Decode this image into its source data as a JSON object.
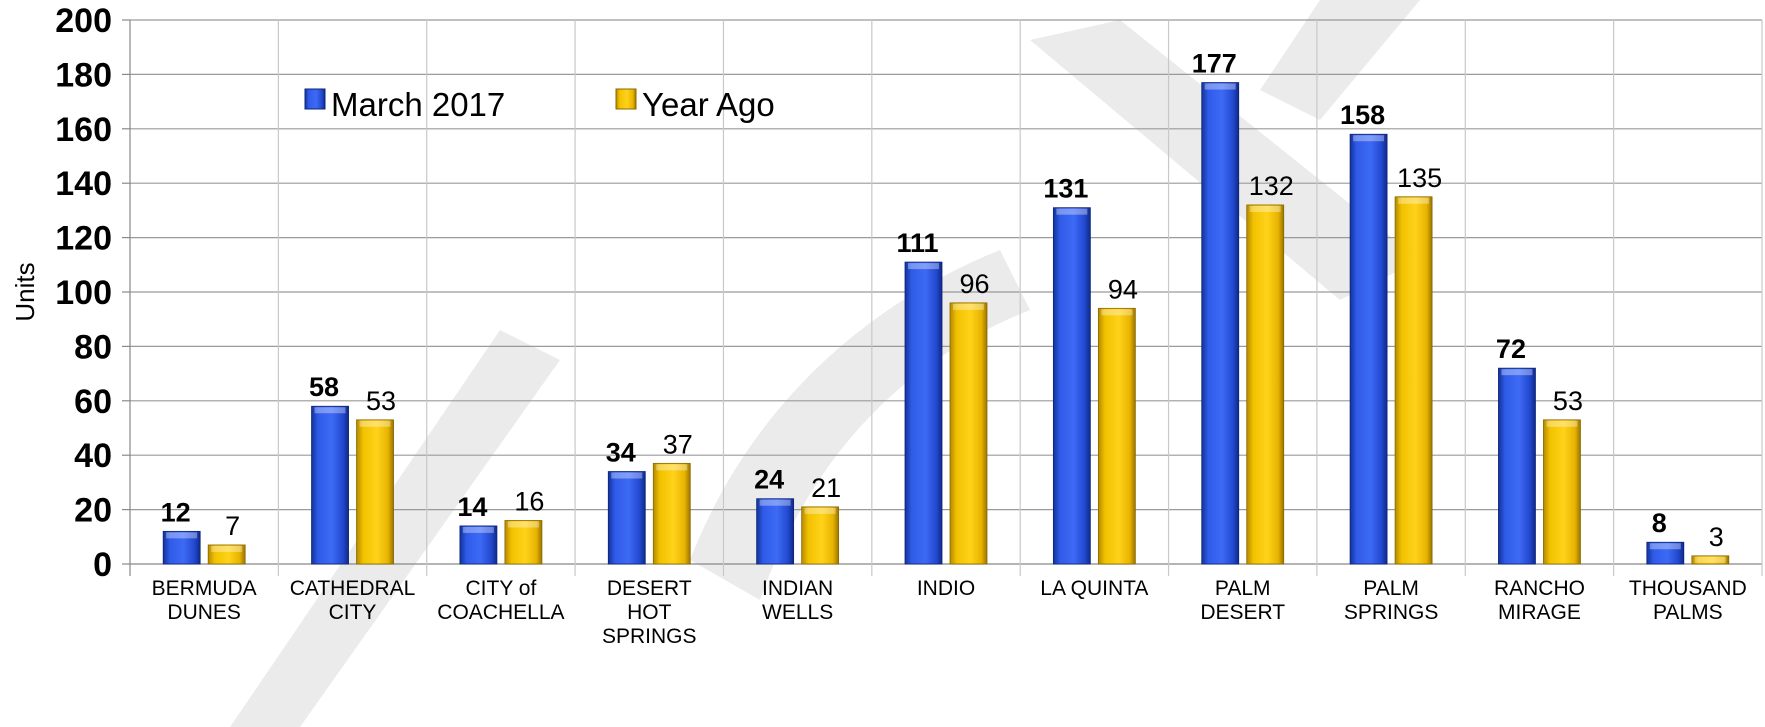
{
  "chart_data": {
    "type": "bar",
    "title": "",
    "ylabel": "Units",
    "xlabel": "",
    "ylim": [
      0,
      200
    ],
    "yticks": [
      0,
      20,
      40,
      60,
      80,
      100,
      120,
      140,
      160,
      180,
      200
    ],
    "grid": true,
    "legend_position": "top-left",
    "categories": [
      [
        "BERMUDA",
        "DUNES"
      ],
      [
        "CATHEDRAL",
        "CITY"
      ],
      [
        "CITY of",
        "COACHELLA"
      ],
      [
        "DESERT",
        "HOT",
        "SPRINGS"
      ],
      [
        "INDIAN",
        "WELLS"
      ],
      [
        "INDIO"
      ],
      [
        "LA QUINTA"
      ],
      [
        "PALM",
        "DESERT"
      ],
      [
        "PALM",
        "SPRINGS"
      ],
      [
        "RANCHO",
        "MIRAGE"
      ],
      [
        "THOUSAND",
        "PALMS"
      ]
    ],
    "series": [
      {
        "name": "March 2017",
        "color": "#2a55e0",
        "values": [
          12,
          58,
          14,
          34,
          24,
          111,
          131,
          177,
          158,
          72,
          8
        ]
      },
      {
        "name": "Year Ago",
        "color": "#f5c400",
        "values": [
          7,
          53,
          16,
          37,
          21,
          96,
          94,
          132,
          135,
          53,
          3
        ]
      }
    ]
  }
}
